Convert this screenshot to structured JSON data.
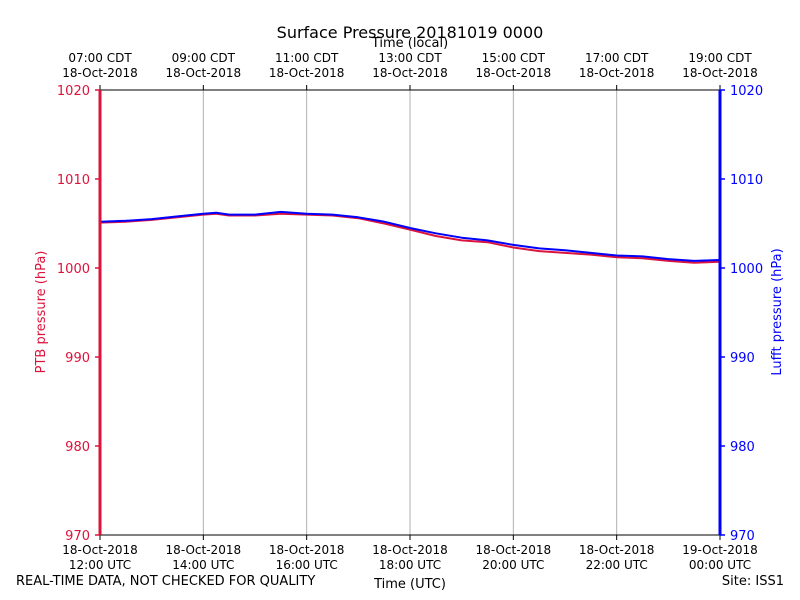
{
  "chart_data": {
    "type": "line",
    "title": "Surface Pressure 20181019 0000",
    "xlabel_bottom": "Time (UTC)",
    "xlabel_top": "Time (local)",
    "ylabel_left": "PTB pressure (hPa)",
    "ylabel_right": "Lufft pressure (hPa)",
    "x_range_utc_hours": [
      12,
      24
    ],
    "ylim": [
      970,
      1020
    ],
    "y_ticks": [
      970,
      980,
      990,
      1000,
      1010,
      1020
    ],
    "grid": "vertical",
    "bottom_ticks": [
      {
        "hour": 12,
        "line1": "18-Oct-2018",
        "line2": "12:00 UTC"
      },
      {
        "hour": 14,
        "line1": "18-Oct-2018",
        "line2": "14:00 UTC"
      },
      {
        "hour": 16,
        "line1": "18-Oct-2018",
        "line2": "16:00 UTC"
      },
      {
        "hour": 18,
        "line1": "18-Oct-2018",
        "line2": "18:00 UTC"
      },
      {
        "hour": 20,
        "line1": "18-Oct-2018",
        "line2": "20:00 UTC"
      },
      {
        "hour": 22,
        "line1": "18-Oct-2018",
        "line2": "22:00 UTC"
      },
      {
        "hour": 24,
        "line1": "19-Oct-2018",
        "line2": "00:00 UTC"
      }
    ],
    "top_ticks": [
      {
        "hour": 12,
        "line1": "07:00 CDT",
        "line2": "18-Oct-2018"
      },
      {
        "hour": 14,
        "line1": "09:00 CDT",
        "line2": "18-Oct-2018"
      },
      {
        "hour": 16,
        "line1": "11:00 CDT",
        "line2": "18-Oct-2018"
      },
      {
        "hour": 18,
        "line1": "13:00 CDT",
        "line2": "18-Oct-2018"
      },
      {
        "hour": 20,
        "line1": "15:00 CDT",
        "line2": "18-Oct-2018"
      },
      {
        "hour": 22,
        "line1": "17:00 CDT",
        "line2": "18-Oct-2018"
      },
      {
        "hour": 24,
        "line1": "19:00 CDT",
        "line2": "18-Oct-2018"
      }
    ],
    "series": [
      {
        "name": "PTB pressure",
        "axis": "left",
        "color": "#dc143c",
        "x": [
          12.0,
          12.5,
          13.0,
          13.5,
          14.0,
          14.25,
          14.5,
          15.0,
          15.5,
          16.0,
          16.5,
          17.0,
          17.5,
          18.0,
          18.5,
          19.0,
          19.5,
          20.0,
          20.5,
          21.0,
          21.5,
          22.0,
          22.5,
          23.0,
          23.5,
          24.0
        ],
        "values": [
          1005.1,
          1005.2,
          1005.4,
          1005.7,
          1006.0,
          1006.1,
          1005.9,
          1005.9,
          1006.1,
          1006.0,
          1005.9,
          1005.6,
          1005.0,
          1004.3,
          1003.6,
          1003.1,
          1002.9,
          1002.3,
          1001.9,
          1001.7,
          1001.5,
          1001.2,
          1001.1,
          1000.8,
          1000.6,
          1000.7
        ]
      },
      {
        "name": "Lufft pressure",
        "axis": "right",
        "color": "#0000ff",
        "x": [
          12.0,
          12.5,
          13.0,
          13.5,
          14.0,
          14.25,
          14.5,
          15.0,
          15.5,
          16.0,
          16.5,
          17.0,
          17.5,
          18.0,
          18.5,
          19.0,
          19.5,
          20.0,
          20.5,
          21.0,
          21.5,
          22.0,
          22.5,
          23.0,
          23.5,
          24.0
        ],
        "values": [
          1005.2,
          1005.3,
          1005.5,
          1005.8,
          1006.1,
          1006.2,
          1006.0,
          1006.0,
          1006.3,
          1006.1,
          1006.0,
          1005.7,
          1005.2,
          1004.5,
          1003.9,
          1003.4,
          1003.1,
          1002.6,
          1002.2,
          1002.0,
          1001.7,
          1001.4,
          1001.3,
          1001.0,
          1000.8,
          1000.9
        ]
      }
    ]
  },
  "footer": {
    "disclaimer": "REAL-TIME DATA, NOT CHECKED FOR QUALITY",
    "site": "Site: ISS1"
  },
  "colors": {
    "left_axis": "#dc143c",
    "right_axis": "#0000ff",
    "grid": "#b0b0b0"
  }
}
